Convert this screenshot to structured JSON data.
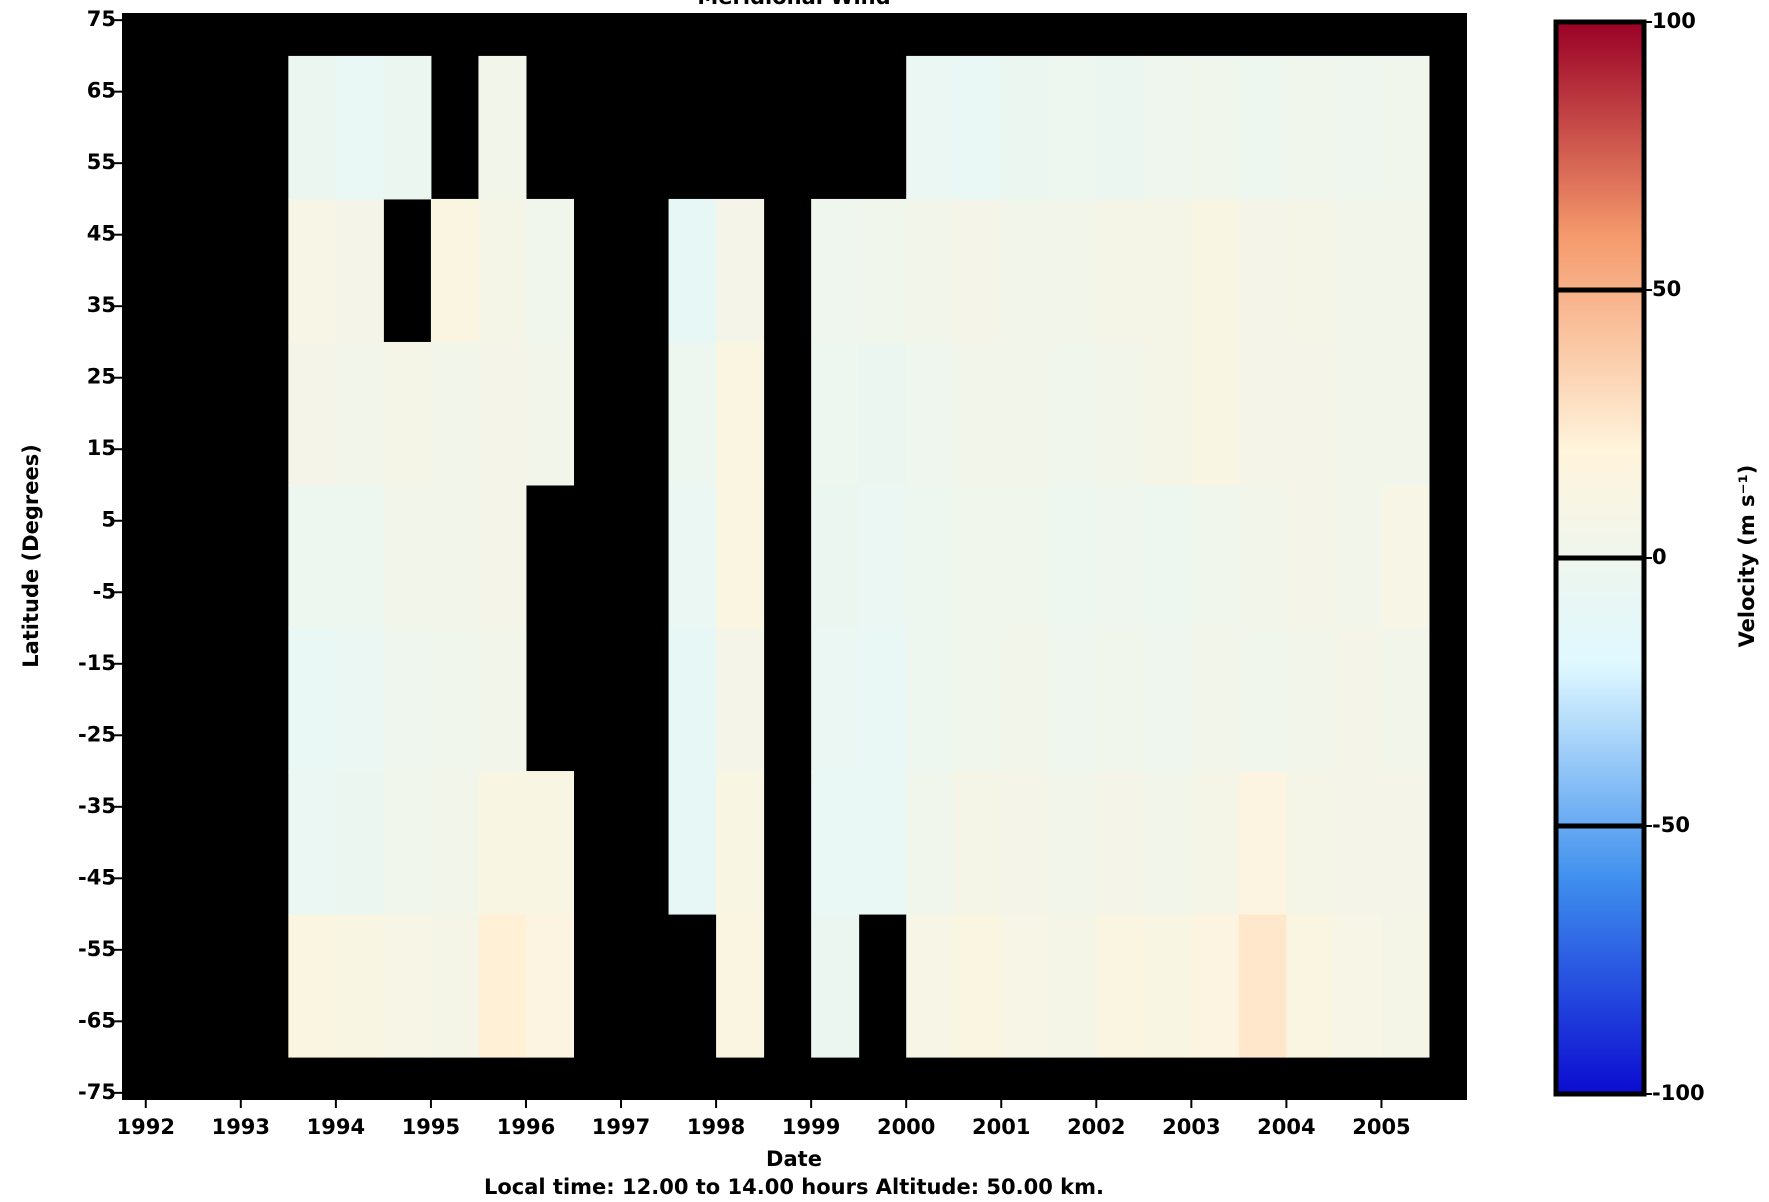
{
  "chart_data": {
    "type": "heatmap",
    "title": "Meridional Wind",
    "x_label": "Date",
    "y_label": "Latitude (Degrees)",
    "note": "Local time:  12.00 to  14.00 hours    Altitude:  50.00 km.",
    "colorbar_label": "Velocity (m s⁻¹)",
    "xlim": [
      1991.75,
      2005.9
    ],
    "xticks": [
      1992,
      1993,
      1994,
      1995,
      1996,
      1997,
      1998,
      1999,
      2000,
      2001,
      2002,
      2003,
      2004,
      2005
    ],
    "ylim": [
      -76,
      76
    ],
    "yticks": [
      75,
      65,
      55,
      45,
      35,
      25,
      15,
      5,
      -5,
      -15,
      -25,
      -35,
      -45,
      -55,
      -65,
      -75
    ],
    "x_edges": [
      1993.5,
      1994,
      1994.5,
      1995,
      1995.5,
      1996,
      1996.5,
      1997,
      1997.5,
      1998,
      1998.5,
      1999,
      1999.5,
      2000,
      2000.5,
      2001,
      2001.5,
      2002,
      2002.5,
      2003,
      2003.5,
      2004,
      2004.5,
      2005,
      2005.5
    ],
    "y_edges": [
      -70,
      -50,
      -30,
      -10,
      10,
      30,
      50,
      70
    ],
    "values": [
      [
        14,
        12,
        10,
        8,
        22,
        16,
        null,
        null,
        null,
        14,
        null,
        -4,
        null,
        10,
        14,
        10,
        8,
        14,
        12,
        16,
        26,
        14,
        10,
        8
      ],
      [
        -6,
        -4,
        2,
        4,
        12,
        12,
        null,
        null,
        -10,
        12,
        null,
        -8,
        -8,
        2,
        8,
        6,
        4,
        6,
        4,
        8,
        16,
        8,
        6,
        6
      ],
      [
        -8,
        -6,
        0,
        2,
        4,
        null,
        null,
        null,
        -10,
        6,
        null,
        -6,
        -8,
        -2,
        2,
        4,
        0,
        2,
        0,
        4,
        2,
        4,
        6,
        4
      ],
      [
        -2,
        -2,
        4,
        4,
        6,
        null,
        null,
        null,
        -6,
        14,
        null,
        -4,
        -6,
        -2,
        2,
        2,
        -2,
        0,
        -2,
        2,
        4,
        6,
        4,
        10
      ],
      [
        6,
        4,
        8,
        4,
        6,
        4,
        null,
        null,
        -2,
        14,
        null,
        -2,
        -4,
        0,
        4,
        4,
        2,
        4,
        8,
        12,
        6,
        6,
        4,
        4
      ],
      [
        10,
        6,
        null,
        14,
        8,
        2,
        null,
        null,
        -10,
        6,
        null,
        0,
        2,
        4,
        6,
        4,
        4,
        8,
        8,
        12,
        6,
        8,
        4,
        4
      ],
      [
        -4,
        -8,
        -4,
        null,
        4,
        null,
        null,
        null,
        null,
        null,
        null,
        null,
        null,
        -6,
        -8,
        -4,
        -2,
        -4,
        0,
        2,
        -2,
        2,
        0,
        2
      ]
    ],
    "background": "#000000",
    "colors": [
      "#0c0cd0",
      "#3f8fee",
      "#dff8ff",
      "#fff4dc",
      "#f59a6c",
      "#9a0026"
    ],
    "clim": [
      -100,
      100
    ],
    "cticks": [
      100,
      50,
      0,
      -50,
      -100
    ],
    "colorbar_lines": [
      50,
      0,
      -50
    ]
  }
}
